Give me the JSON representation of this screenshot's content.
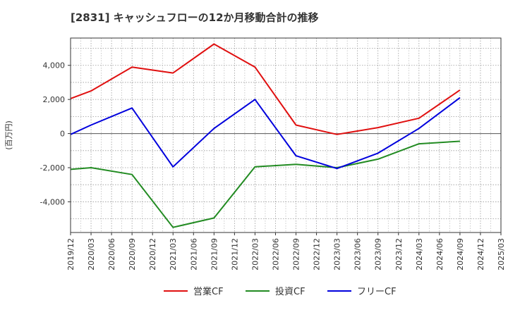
{
  "chart_data": {
    "type": "line",
    "title": "[2831]  キャッシュフローの12か月移動合計の推移",
    "ylabel": "(百万円)",
    "xlabel": "",
    "ylim": [
      -5800,
      5600
    ],
    "yticks": [
      -4000,
      -2000,
      0,
      2000,
      4000
    ],
    "ytick_labels": [
      "-4,000",
      "-2,000",
      "0",
      "2,000",
      "4,000"
    ],
    "categories": [
      "2019/12",
      "2020/03",
      "2020/06",
      "2020/09",
      "2020/12",
      "2021/03",
      "2021/06",
      "2021/09",
      "2021/12",
      "2022/03",
      "2022/06",
      "2022/09",
      "2022/12",
      "2023/03",
      "2023/06",
      "2023/09",
      "2023/12",
      "2024/03",
      "2024/06",
      "2024/09",
      "2024/12",
      "2025/03"
    ],
    "grid": true,
    "legend_position": "bottom",
    "series": [
      {
        "name": "営業CF",
        "color": "#e01010",
        "values": [
          2050,
          2500,
          null,
          3900,
          null,
          3550,
          null,
          5250,
          null,
          3900,
          null,
          500,
          null,
          -50,
          null,
          350,
          null,
          900,
          null,
          2550,
          null,
          null
        ]
      },
      {
        "name": "投資CF",
        "color": "#228b22",
        "values": [
          -2100,
          -2000,
          null,
          -2400,
          null,
          -5500,
          null,
          -4950,
          null,
          -1950,
          null,
          -1800,
          null,
          -2000,
          null,
          -1500,
          null,
          -600,
          null,
          -450,
          null,
          null
        ]
      },
      {
        "name": "フリーCF",
        "color": "#0000dd",
        "values": [
          -50,
          500,
          null,
          1500,
          null,
          -1950,
          null,
          300,
          null,
          2000,
          null,
          -1300,
          null,
          -2050,
          null,
          -1150,
          null,
          300,
          null,
          2100,
          null,
          null
        ]
      }
    ]
  }
}
